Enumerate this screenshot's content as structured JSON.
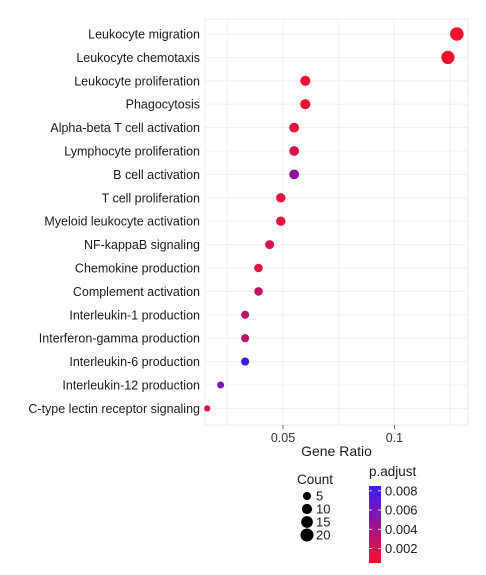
{
  "chart_data": {
    "type": "scatter",
    "xlabel": "Gene Ratio",
    "ylabel": "",
    "xlim": [
      0.015,
      0.133
    ],
    "x_ticks": [
      0.05,
      0.1
    ],
    "x_tick_labels": [
      "0.05",
      "0.1"
    ],
    "grid": true,
    "legend_placement": "bottom",
    "categories": [
      "Leukocyte migration",
      "Leukocyte chemotaxis",
      "Leukocyte proliferation",
      "Phagocytosis",
      "Alpha-beta T cell activation",
      "Lymphocyte proliferation",
      "B cell activation",
      "T cell proliferation",
      "Myeloid leukocyte activation",
      "NF-kappaB signaling",
      "Chemokine production",
      "Complement activation",
      "Interleukin-1 production",
      "Interferon-gamma production",
      "Interleukin-6 production",
      "Interleukin-12 production",
      "C-type lectin receptor signaling"
    ],
    "points": [
      {
        "term": "Leukocyte migration",
        "gene_ratio": 0.128,
        "count": 22,
        "p_adjust": 0.0005
      },
      {
        "term": "Leukocyte chemotaxis",
        "gene_ratio": 0.124,
        "count": 21,
        "p_adjust": 0.0005
      },
      {
        "term": "Leukocyte proliferation",
        "gene_ratio": 0.06,
        "count": 10,
        "p_adjust": 0.0006
      },
      {
        "term": "Phagocytosis",
        "gene_ratio": 0.06,
        "count": 10,
        "p_adjust": 0.0006
      },
      {
        "term": "Alpha-beta T cell activation",
        "gene_ratio": 0.055,
        "count": 9,
        "p_adjust": 0.0012
      },
      {
        "term": "Lymphocyte proliferation",
        "gene_ratio": 0.055,
        "count": 9,
        "p_adjust": 0.0016
      },
      {
        "term": "B cell activation",
        "gene_ratio": 0.055,
        "count": 9,
        "p_adjust": 0.0048
      },
      {
        "term": "T cell proliferation",
        "gene_ratio": 0.049,
        "count": 8,
        "p_adjust": 0.001
      },
      {
        "term": "Myeloid leukocyte activation",
        "gene_ratio": 0.049,
        "count": 8,
        "p_adjust": 0.001
      },
      {
        "term": "NF-kappaB signaling",
        "gene_ratio": 0.044,
        "count": 7,
        "p_adjust": 0.0016
      },
      {
        "term": "Chemokine production",
        "gene_ratio": 0.039,
        "count": 6,
        "p_adjust": 0.0012
      },
      {
        "term": "Complement activation",
        "gene_ratio": 0.039,
        "count": 6,
        "p_adjust": 0.0028
      },
      {
        "term": "Interleukin-1 production",
        "gene_ratio": 0.033,
        "count": 5,
        "p_adjust": 0.003
      },
      {
        "term": "Interferon-gamma production",
        "gene_ratio": 0.033,
        "count": 5,
        "p_adjust": 0.003
      },
      {
        "term": "Interleukin-6 production",
        "gene_ratio": 0.033,
        "count": 5,
        "p_adjust": 0.0085
      },
      {
        "term": "Interleukin-12 production",
        "gene_ratio": 0.022,
        "count": 3,
        "p_adjust": 0.006
      },
      {
        "term": "C-type lectin receptor signaling",
        "gene_ratio": 0.016,
        "count": 2,
        "p_adjust": 0.002
      }
    ],
    "size_legend": {
      "title": "Count",
      "values": [
        5,
        10,
        15,
        20
      ],
      "labels": [
        "5",
        "10",
        "15",
        "20"
      ]
    },
    "color_legend": {
      "title": "p.adjust",
      "min": 0.0005,
      "max": 0.0085,
      "ticks": [
        0.008,
        0.006,
        0.004,
        0.002
      ],
      "tick_labels": [
        "0.008",
        "0.006",
        "0.004",
        "0.002"
      ],
      "low_color": "#f5102d",
      "high_color": "#3a1cf5"
    }
  }
}
